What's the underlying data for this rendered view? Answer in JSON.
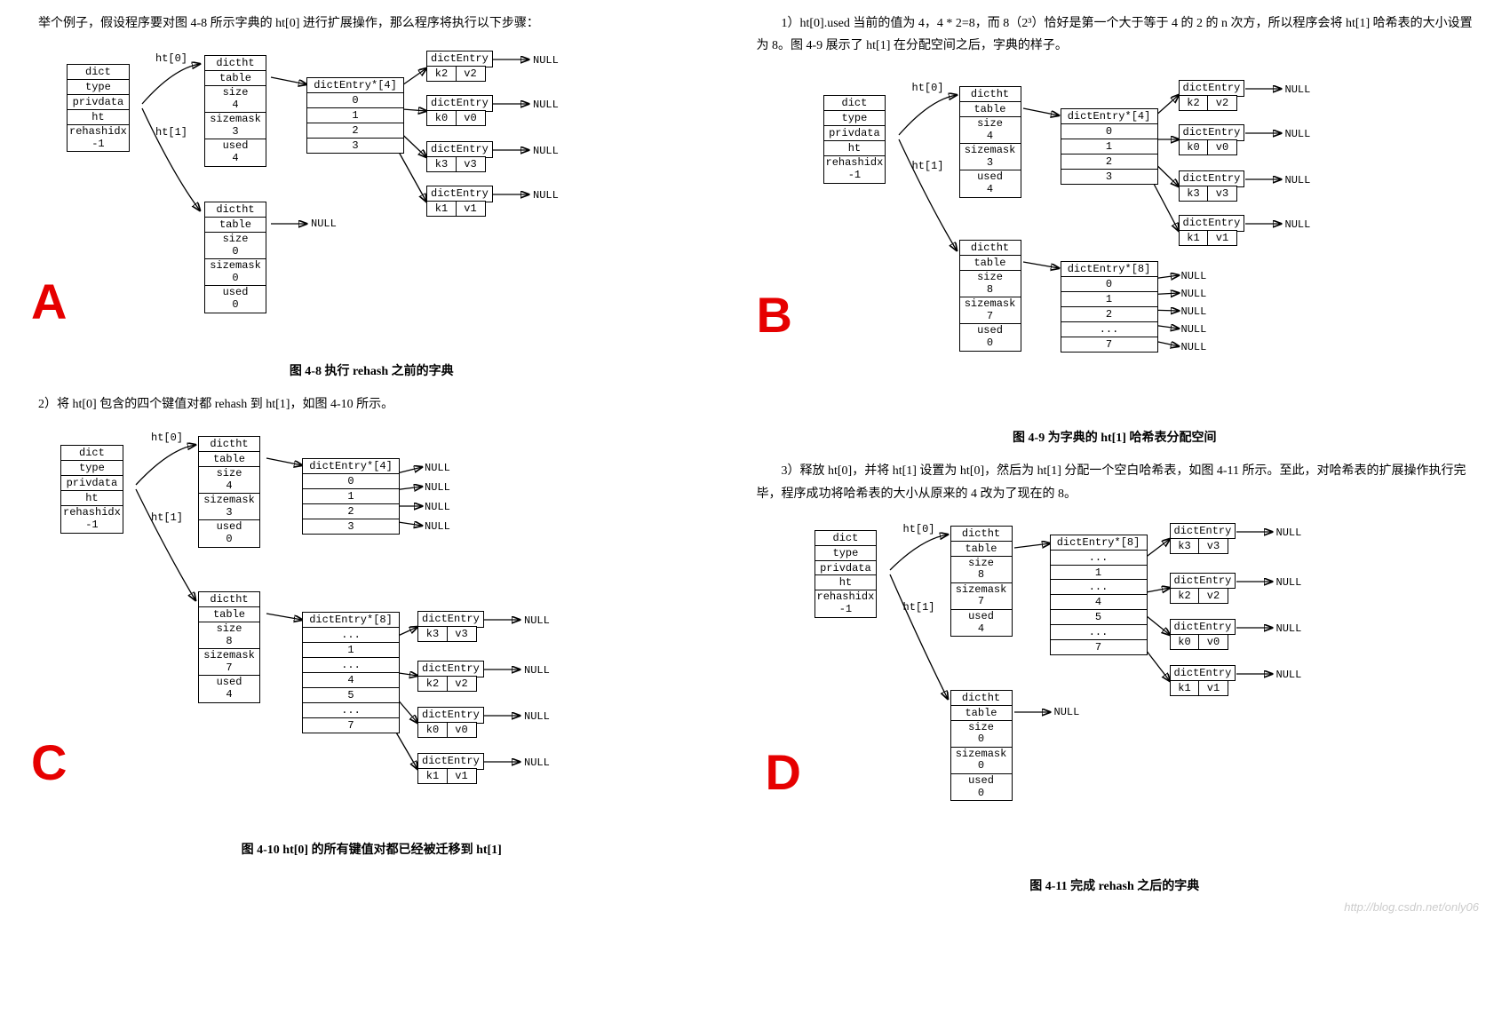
{
  "letters": {
    "A": "A",
    "B": "B",
    "C": "C",
    "D": "D"
  },
  "letter_color": "#e60000",
  "line_color": "#000000",
  "bg_color": "#ffffff",
  "font_mono": "Courier New",
  "watermark": "http://blog.csdn.net/only06",
  "colA": {
    "intro": "举个例子，假设程序要对图 4-8 所示字典的 ht[0] 进行扩展操作，那么程序将执行以下步骤：",
    "fig48": {
      "caption": "图 4-8  执行 rehash 之前的字典",
      "dict": [
        "dict",
        "type",
        "privdata",
        "ht",
        "rehashidx\n-1"
      ],
      "ht_labels": [
        "ht[0]",
        "ht[1]"
      ],
      "ht0": {
        "header": "dictht",
        "rows": [
          "table",
          "size\n4",
          "sizemask\n3",
          "used\n4"
        ]
      },
      "ht1": {
        "header": "dictht",
        "rows": [
          "table",
          "size\n0",
          "sizemask\n0",
          "used\n0"
        ]
      },
      "ht1_null": "NULL",
      "arr0": {
        "header": "dictEntry*[4]",
        "rows": [
          "0",
          "1",
          "2",
          "3"
        ]
      },
      "entries": [
        {
          "h": "dictEntry",
          "k": "k2",
          "v": "v2",
          "null": "NULL"
        },
        {
          "h": "dictEntry",
          "k": "k0",
          "v": "v0",
          "null": "NULL"
        },
        {
          "h": "dictEntry",
          "k": "k3",
          "v": "v3",
          "null": "NULL"
        },
        {
          "h": "dictEntry",
          "k": "k1",
          "v": "v1",
          "null": "NULL"
        }
      ]
    },
    "step2": "2）将 ht[0] 包含的四个键值对都 rehash 到 ht[1]，如图 4-10 所示。",
    "fig410": {
      "caption": "图 4-10  ht[0] 的所有键值对都已经被迁移到 ht[1]",
      "dict": [
        "dict",
        "type",
        "privdata",
        "ht",
        "rehashidx\n-1"
      ],
      "ht_labels": [
        "ht[0]",
        "ht[1]"
      ],
      "ht0": {
        "header": "dictht",
        "rows": [
          "table",
          "size\n4",
          "sizemask\n3",
          "used\n0"
        ]
      },
      "ht1": {
        "header": "dictht",
        "rows": [
          "table",
          "size\n8",
          "sizemask\n7",
          "used\n4"
        ]
      },
      "arr0": {
        "header": "dictEntry*[4]",
        "rows": [
          "0",
          "1",
          "2",
          "3"
        ],
        "nulls": [
          "NULL",
          "NULL",
          "NULL",
          "NULL"
        ]
      },
      "arr1": {
        "header": "dictEntry*[8]",
        "rows": [
          "...",
          "1",
          "...",
          "4",
          "5",
          "...",
          "7"
        ]
      },
      "entries": [
        {
          "h": "dictEntry",
          "k": "k3",
          "v": "v3",
          "null": "NULL"
        },
        {
          "h": "dictEntry",
          "k": "k2",
          "v": "v2",
          "null": "NULL"
        },
        {
          "h": "dictEntry",
          "k": "k0",
          "v": "v0",
          "null": "NULL"
        },
        {
          "h": "dictEntry",
          "k": "k1",
          "v": "v1",
          "null": "NULL"
        }
      ]
    }
  },
  "colB": {
    "step1": "1）ht[0].used 当前的值为 4，4 * 2=8，而 8（2³）恰好是第一个大于等于 4 的 2 的 n 次方，所以程序会将 ht[1] 哈希表的大小设置为 8。图 4-9 展示了 ht[1] 在分配空间之后，字典的样子。",
    "fig49": {
      "caption": "图 4-9  为字典的 ht[1] 哈希表分配空间",
      "dict": [
        "dict",
        "type",
        "privdata",
        "ht",
        "rehashidx\n-1"
      ],
      "ht_labels": [
        "ht[0]",
        "ht[1]"
      ],
      "ht0": {
        "header": "dictht",
        "rows": [
          "table",
          "size\n4",
          "sizemask\n3",
          "used\n4"
        ]
      },
      "ht1": {
        "header": "dictht",
        "rows": [
          "table",
          "size\n8",
          "sizemask\n7",
          "used\n0"
        ]
      },
      "arr0": {
        "header": "dictEntry*[4]",
        "rows": [
          "0",
          "1",
          "2",
          "3"
        ]
      },
      "arr1": {
        "header": "dictEntry*[8]",
        "rows": [
          "0",
          "1",
          "2",
          "...",
          "7"
        ],
        "nulls": [
          "NULL",
          "NULL",
          "NULL",
          "NULL",
          "NULL"
        ]
      },
      "entries": [
        {
          "h": "dictEntry",
          "k": "k2",
          "v": "v2",
          "null": "NULL"
        },
        {
          "h": "dictEntry",
          "k": "k0",
          "v": "v0",
          "null": "NULL"
        },
        {
          "h": "dictEntry",
          "k": "k3",
          "v": "v3",
          "null": "NULL"
        },
        {
          "h": "dictEntry",
          "k": "k1",
          "v": "v1",
          "null": "NULL"
        }
      ]
    },
    "step3": "3）释放 ht[0]，并将 ht[1] 设置为 ht[0]，然后为 ht[1] 分配一个空白哈希表，如图 4-11 所示。至此，对哈希表的扩展操作执行完毕，程序成功将哈希表的大小从原来的 4 改为了现在的 8。",
    "fig411": {
      "caption": "图 4-11  完成 rehash 之后的字典",
      "dict": [
        "dict",
        "type",
        "privdata",
        "ht",
        "rehashidx\n-1"
      ],
      "ht_labels": [
        "ht[0]",
        "ht[1]"
      ],
      "ht0": {
        "header": "dictht",
        "rows": [
          "table",
          "size\n8",
          "sizemask\n7",
          "used\n4"
        ]
      },
      "ht1": {
        "header": "dictht",
        "rows": [
          "table",
          "size\n0",
          "sizemask\n0",
          "used\n0"
        ]
      },
      "ht1_null": "NULL",
      "arr0": {
        "header": "dictEntry*[8]",
        "rows": [
          "...",
          "1",
          "...",
          "4",
          "5",
          "...",
          "7"
        ]
      },
      "entries": [
        {
          "h": "dictEntry",
          "k": "k3",
          "v": "v3",
          "null": "NULL"
        },
        {
          "h": "dictEntry",
          "k": "k2",
          "v": "v2",
          "null": "NULL"
        },
        {
          "h": "dictEntry",
          "k": "k0",
          "v": "v0",
          "null": "NULL"
        },
        {
          "h": "dictEntry",
          "k": "k1",
          "v": "v1",
          "null": "NULL"
        }
      ]
    }
  }
}
